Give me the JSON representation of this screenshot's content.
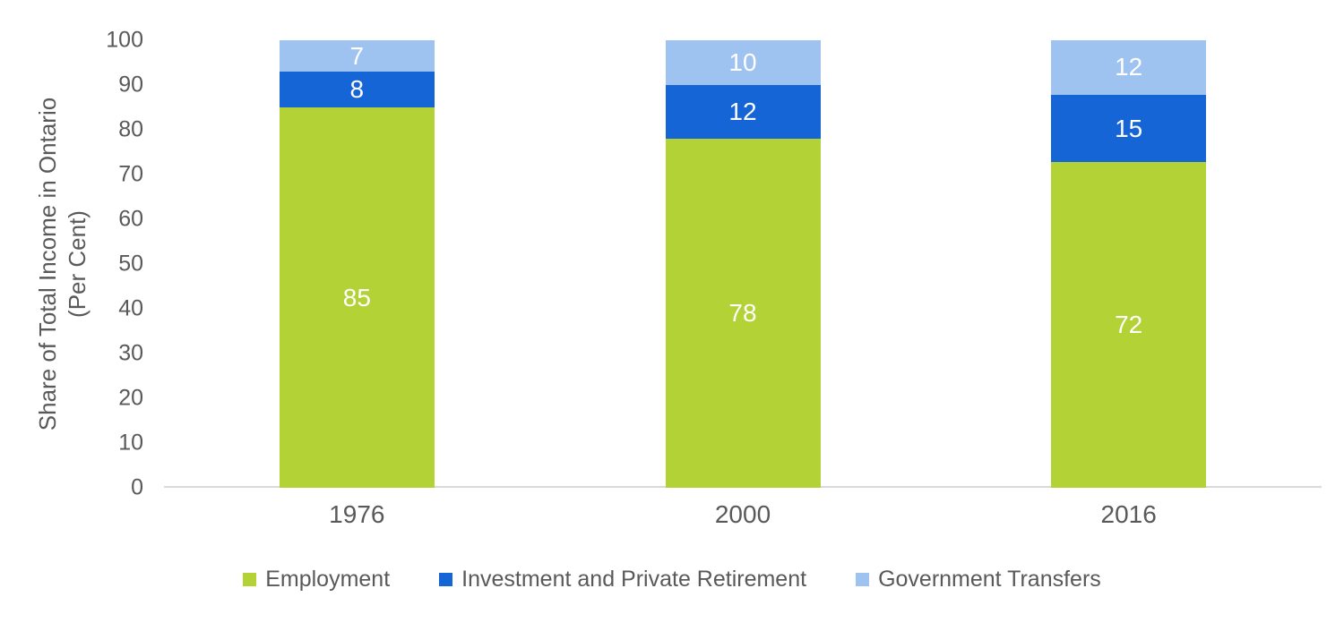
{
  "chart_data": {
    "type": "bar",
    "stacked": true,
    "title": "",
    "xlabel": "",
    "ylabel_line1": "Share of Total Income in Ontario",
    "ylabel_line2": "(Per Cent)",
    "categories": [
      "1976",
      "2000",
      "2016"
    ],
    "series": [
      {
        "name": "Employment",
        "color": "#B2D235",
        "values": [
          85,
          78,
          72
        ]
      },
      {
        "name": "Investment and Private Retirement",
        "color": "#1565D6",
        "values": [
          8,
          12,
          15
        ]
      },
      {
        "name": "Government Transfers",
        "color": "#9FC3F0",
        "values": [
          7,
          10,
          12
        ]
      }
    ],
    "ylim": [
      0,
      100
    ],
    "yticks": [
      "0",
      "10",
      "20",
      "30",
      "40",
      "50",
      "60",
      "70",
      "80",
      "90",
      "100"
    ],
    "grid": false,
    "legend_position": "bottom",
    "bar_label_color": "#FFFFFF",
    "axis_line_color": "#D9D9D9",
    "text_color": "#595959"
  }
}
